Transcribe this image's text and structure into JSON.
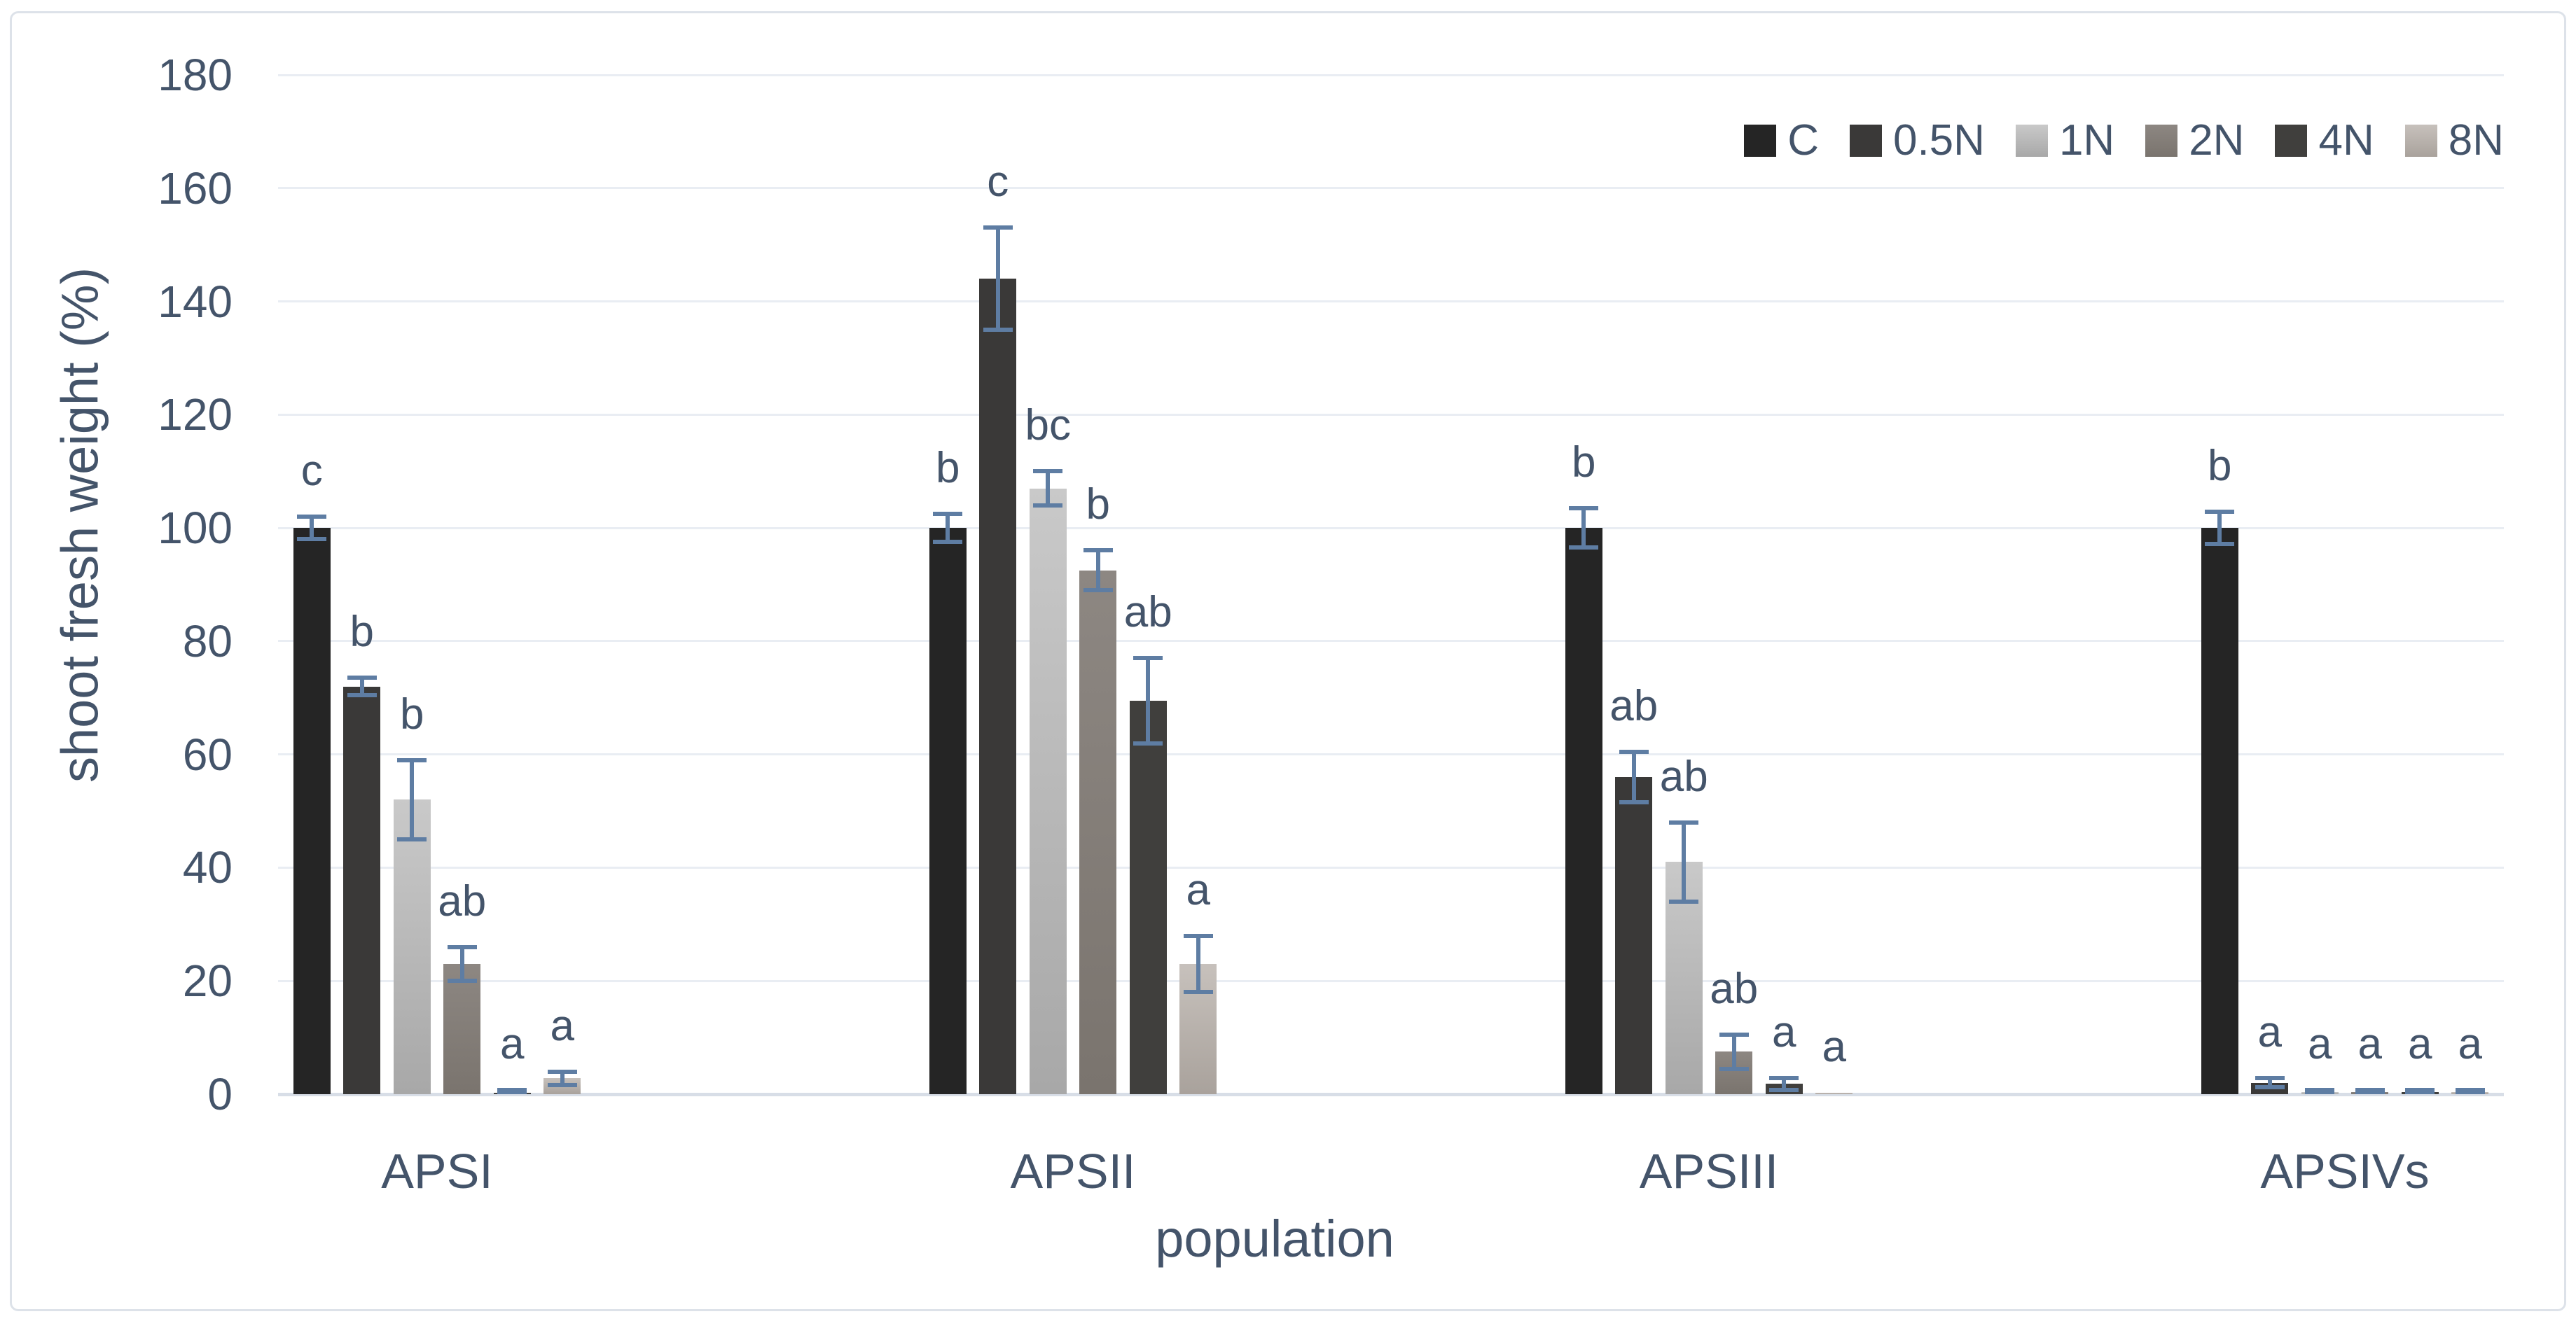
{
  "figure": {
    "background": "#ffffff",
    "border_color": "#dde2e9"
  },
  "chart_data": {
    "type": "bar",
    "title": "",
    "xlabel": "population",
    "ylabel": "shoot fresh weight (%)",
    "ylim": [
      0,
      180
    ],
    "ytick_step": 20,
    "grid": true,
    "legend_position": "top-right",
    "text_color": "#44546a",
    "gridline_color": "#e9edf3",
    "axisline_color": "#d8dee7",
    "error_bar_color": "#5e7da3",
    "categories": [
      "APSI",
      "APSII",
      "APSIII",
      "APSIVs"
    ],
    "series": [
      {
        "name": "C",
        "color": "#252525",
        "values": [
          100,
          100,
          100,
          100
        ],
        "errors": [
          2,
          2.5,
          3.5,
          2.8
        ],
        "letters": [
          "c",
          "b",
          "b",
          "b"
        ]
      },
      {
        "name": "0.5N",
        "color": "#3a3938",
        "values": [
          72,
          144,
          56,
          2
        ],
        "errors": [
          1.5,
          9,
          4.5,
          0.8
        ],
        "letters": [
          "b",
          "c",
          "ab",
          "a"
        ]
      },
      {
        "name": "1N",
        "color": "#c9c9c9",
        "color2": "#a8a8a8",
        "values": [
          52,
          107,
          41,
          0.4
        ],
        "errors": [
          7,
          3,
          7,
          0.3
        ],
        "letters": [
          "b",
          "bc",
          "ab",
          "a"
        ]
      },
      {
        "name": "2N",
        "color": "#8d8782",
        "color2": "#7a746e",
        "values": [
          23,
          92.5,
          7.5,
          0.4
        ],
        "errors": [
          3,
          3.5,
          3,
          0.3
        ],
        "letters": [
          "ab",
          "b",
          "ab",
          "a"
        ]
      },
      {
        "name": "4N",
        "color": "#403f3d",
        "values": [
          0.3,
          69.5,
          1.8,
          0.4
        ],
        "errors": [
          0.4,
          7.5,
          1,
          0.3
        ],
        "letters": [
          "a",
          "ab",
          "a",
          "a"
        ]
      },
      {
        "name": "8N",
        "color": "#c7c1bc",
        "color2": "#a9a29c",
        "values": [
          2.8,
          23,
          0.3,
          0.4
        ],
        "errors": [
          1.2,
          5,
          0,
          0.3
        ],
        "letters": [
          "a",
          "a",
          "a",
          "a"
        ]
      }
    ]
  }
}
